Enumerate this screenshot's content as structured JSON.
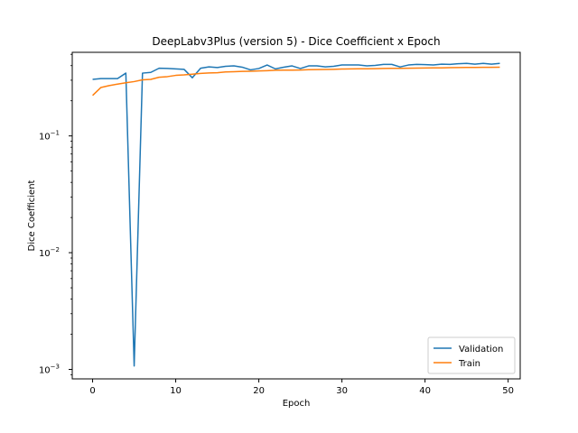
{
  "chart_data": {
    "type": "line",
    "title": "DeepLabv3Plus (version 5) - Dice Coefficient x Epoch",
    "xlabel": "Epoch",
    "ylabel": "Dice Coefficient",
    "yscale": "log",
    "xlim": [
      -2.45,
      51.45
    ],
    "ylim": [
      0.00083,
      0.52
    ],
    "x_ticks": [
      0,
      10,
      20,
      30,
      40,
      50
    ],
    "x_tick_labels": [
      "0",
      "10",
      "20",
      "30",
      "40",
      "50"
    ],
    "y_ticks": [
      0.001,
      0.01,
      0.1
    ],
    "y_tick_labels": [
      {
        "base": "10",
        "exp": "−3"
      },
      {
        "base": "10",
        "exp": "−2"
      },
      {
        "base": "10",
        "exp": "−1"
      }
    ],
    "grid": false,
    "legend": "lower-right",
    "x": [
      0,
      1,
      2,
      3,
      4,
      5,
      6,
      7,
      8,
      9,
      10,
      11,
      12,
      13,
      14,
      15,
      16,
      17,
      18,
      19,
      20,
      21,
      22,
      23,
      24,
      25,
      26,
      27,
      28,
      29,
      30,
      31,
      32,
      33,
      34,
      35,
      36,
      37,
      38,
      39,
      40,
      41,
      42,
      43,
      44,
      45,
      46,
      47,
      48,
      49
    ],
    "series": [
      {
        "name": "Validation",
        "color": "#1f77b4",
        "values": [
          0.305,
          0.31,
          0.31,
          0.31,
          0.345,
          0.00107,
          0.345,
          0.35,
          0.38,
          0.378,
          0.375,
          0.372,
          0.315,
          0.38,
          0.39,
          0.385,
          0.395,
          0.398,
          0.388,
          0.368,
          0.378,
          0.405,
          0.375,
          0.388,
          0.398,
          0.378,
          0.398,
          0.398,
          0.39,
          0.395,
          0.405,
          0.405,
          0.405,
          0.398,
          0.402,
          0.41,
          0.41,
          0.39,
          0.405,
          0.41,
          0.408,
          0.405,
          0.412,
          0.41,
          0.415,
          0.418,
          0.412,
          0.418,
          0.412,
          0.418
        ]
      },
      {
        "name": "Train",
        "color": "#ff7f0e",
        "values": [
          0.222,
          0.26,
          0.27,
          0.278,
          0.285,
          0.292,
          0.302,
          0.305,
          0.318,
          0.322,
          0.33,
          0.333,
          0.338,
          0.343,
          0.346,
          0.348,
          0.353,
          0.355,
          0.357,
          0.358,
          0.36,
          0.362,
          0.365,
          0.366,
          0.366,
          0.367,
          0.369,
          0.37,
          0.371,
          0.372,
          0.374,
          0.375,
          0.376,
          0.376,
          0.377,
          0.378,
          0.379,
          0.379,
          0.38,
          0.381,
          0.382,
          0.383,
          0.383,
          0.384,
          0.385,
          0.386,
          0.386,
          0.387,
          0.387,
          0.388
        ]
      }
    ]
  }
}
